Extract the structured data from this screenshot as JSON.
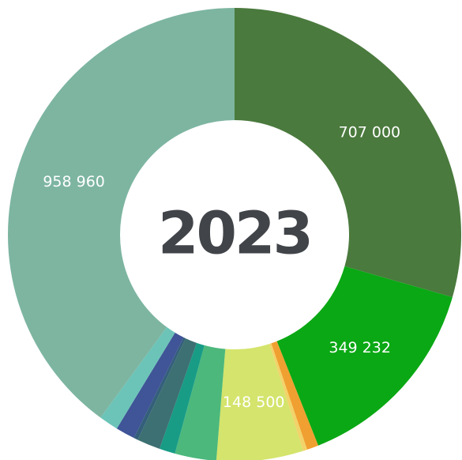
{
  "chart_data": {
    "type": "donut",
    "title": "2023",
    "values": [
      707000,
      349232,
      20000,
      7000,
      148500,
      71000,
      27000,
      40000,
      7000,
      33000,
      33000,
      958960
    ],
    "value_labels": [
      "707 000",
      "349 232",
      null,
      null,
      "148 500",
      null,
      null,
      null,
      null,
      null,
      null,
      "958 960"
    ],
    "colors": [
      "#4a7a3d",
      "#0aa814",
      "#f0a030",
      "#f2d36a",
      "#d4e46c",
      "#4cb87c",
      "#189c86",
      "#3d7072",
      "#345f7a",
      "#3f5597",
      "#6cc4b8",
      "#7db5a1"
    ]
  }
}
